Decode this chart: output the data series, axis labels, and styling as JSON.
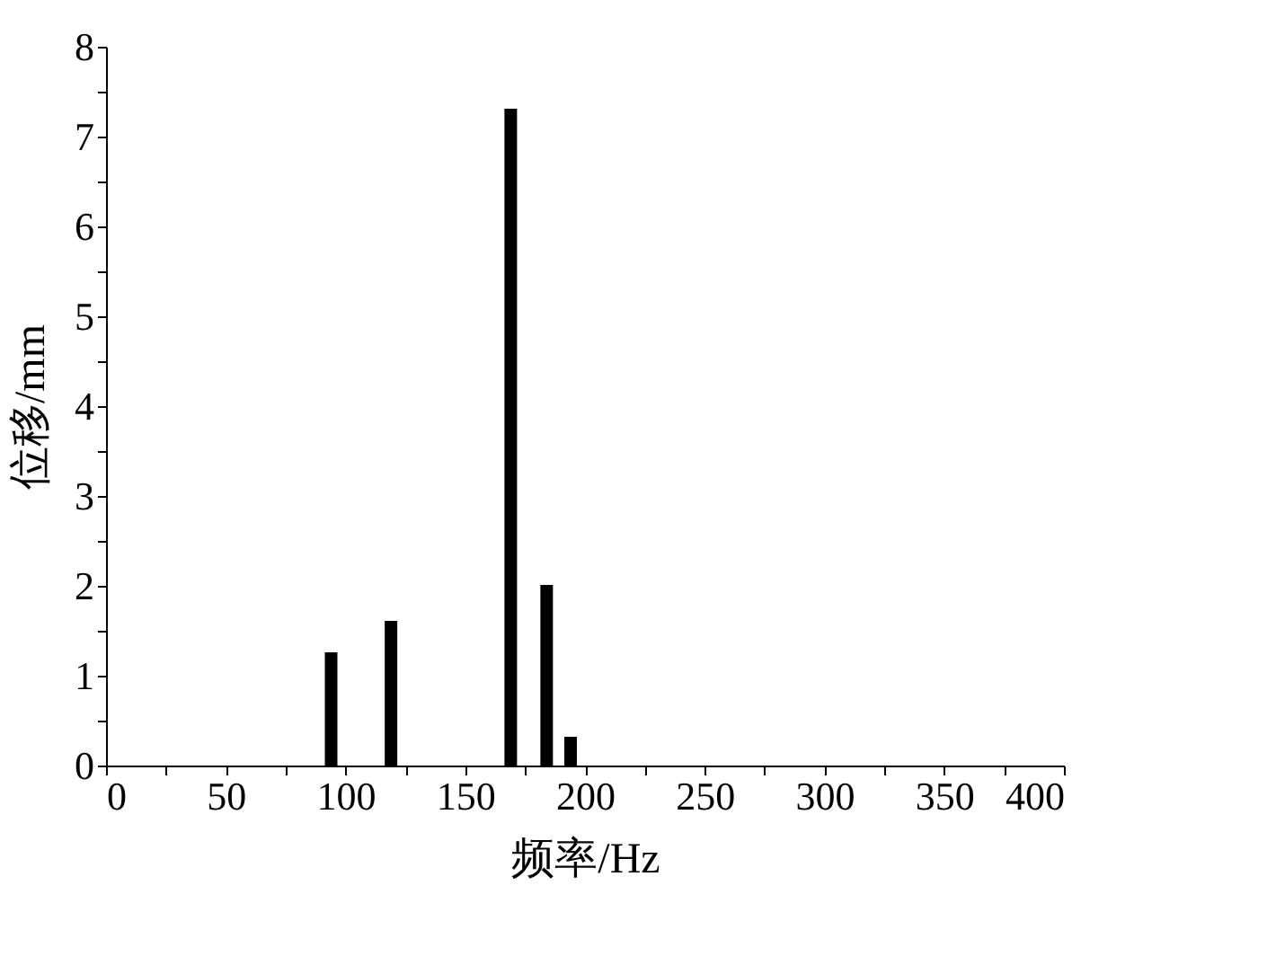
{
  "chart_data": {
    "type": "bar",
    "xlabel": "频率/Hz",
    "ylabel": "位移/mm",
    "x": [
      94,
      119,
      169,
      184,
      194
    ],
    "series": [
      {
        "color": "#000000",
        "values": [
          1.26,
          1.61,
          7.31,
          2.01,
          0.32
        ]
      }
    ],
    "xlim": [
      0,
      400
    ],
    "xticks": [
      0,
      {
        "value": 25,
        "label": null
      },
      50,
      {
        "value": 75,
        "label": null
      },
      100,
      {
        "value": 125,
        "label": null
      },
      150,
      {
        "value": 175,
        "label": null
      },
      200,
      {
        "value": 225,
        "label": null
      },
      250,
      {
        "value": 275,
        "label": null
      },
      300,
      {
        "value": 325,
        "label": null
      },
      350,
      {
        "value": 375,
        "label": null
      },
      400
    ],
    "ylim": [
      0,
      8
    ],
    "yticks": [
      0,
      {
        "value": 0.5,
        "label": null
      },
      1,
      {
        "value": 1.5,
        "label": null
      },
      2,
      {
        "value": 2.5,
        "label": null
      },
      3,
      {
        "value": 3.5,
        "label": null
      },
      4,
      {
        "value": 4.5,
        "label": null
      },
      5,
      {
        "value": 5.5,
        "label": null
      },
      6,
      {
        "value": 6.5,
        "label": null
      },
      7,
      {
        "value": 7.5,
        "label": null
      },
      8
    ],
    "grid": false,
    "legend": false
  }
}
